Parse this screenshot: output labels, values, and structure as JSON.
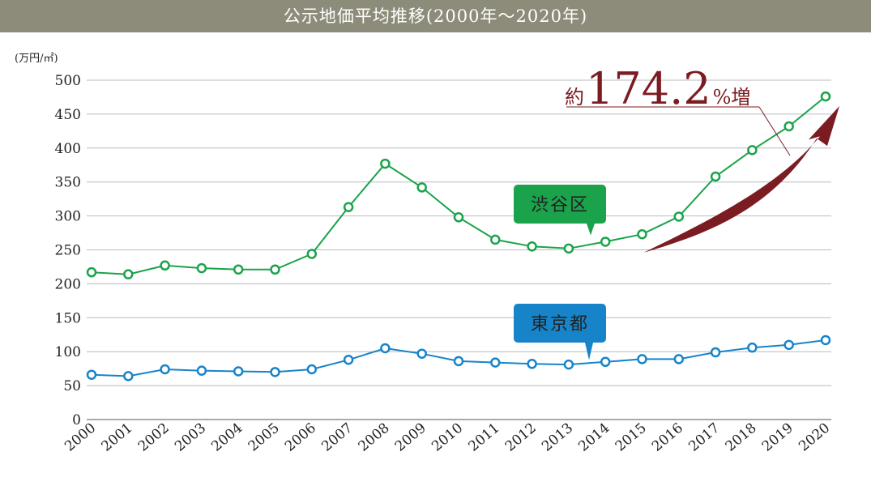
{
  "header": {
    "title": "公示地価平均推移(2000年〜2020年)"
  },
  "colors": {
    "header_bg": "#8d8c7b",
    "shibuya": "#1aa34a",
    "tokyo": "#1784c9",
    "arrow": "#7b1c22",
    "grid": "#bbbbbb"
  },
  "annotation": {
    "prefix": "約",
    "value": "174.2",
    "suffix": "%増"
  },
  "chart_data": {
    "type": "line",
    "ylabel": "(万円/㎡)",
    "ylim": [
      0,
      500
    ],
    "yticks": [
      0,
      50,
      100,
      150,
      200,
      250,
      300,
      350,
      400,
      450,
      500
    ],
    "x": [
      "2000",
      "2001",
      "2002",
      "2003",
      "2004",
      "2005",
      "2006",
      "2007",
      "2008",
      "2009",
      "2010",
      "2011",
      "2012",
      "2013",
      "2014",
      "2015",
      "2016",
      "2017",
      "2018",
      "2019",
      "2020"
    ],
    "grid": true,
    "series": [
      {
        "name": "渋谷区",
        "color": "#1aa34a",
        "values": [
          217,
          214,
          227,
          223,
          221,
          221,
          244,
          313,
          377,
          342,
          298,
          265,
          255,
          252,
          262,
          273,
          299,
          358,
          397,
          432,
          476
        ]
      },
      {
        "name": "東京都",
        "color": "#1784c9",
        "values": [
          66,
          64,
          74,
          72,
          71,
          70,
          74,
          88,
          105,
          97,
          86,
          84,
          82,
          81,
          85,
          89,
          89,
          99,
          106,
          110,
          117
        ]
      }
    ]
  }
}
